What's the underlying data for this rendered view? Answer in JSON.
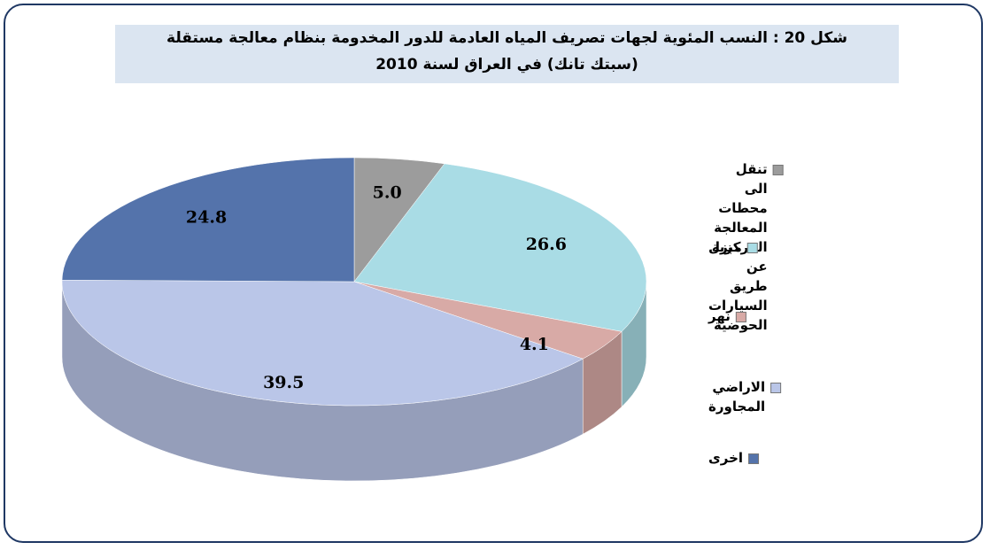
{
  "chart_data": {
    "type": "pie",
    "title": [
      "شكل 20 : النسب المئوية لجهات تصريف المياه العادمة للدور المخدومة بنظام معالجة مستقلة",
      "(سبتك تانك) في العراق لسنة 2010"
    ],
    "categories": [
      "تنقل الى محطات المعالجة المركزية\nعن طريق السيارات الحوضية",
      "مبزل",
      "نهر",
      "الاراضي المجاورة",
      "اخرى"
    ],
    "values": [
      5.0,
      26.6,
      4.1,
      39.5,
      24.8
    ],
    "value_labels": [
      "5.0",
      "26.6",
      "4.1",
      "39.5",
      "24.8"
    ],
    "colors": [
      "#9c9c9c",
      "#a9dce5",
      "#d8aaa6",
      "#bac6e8",
      "#5473ab"
    ],
    "legend": "right"
  }
}
